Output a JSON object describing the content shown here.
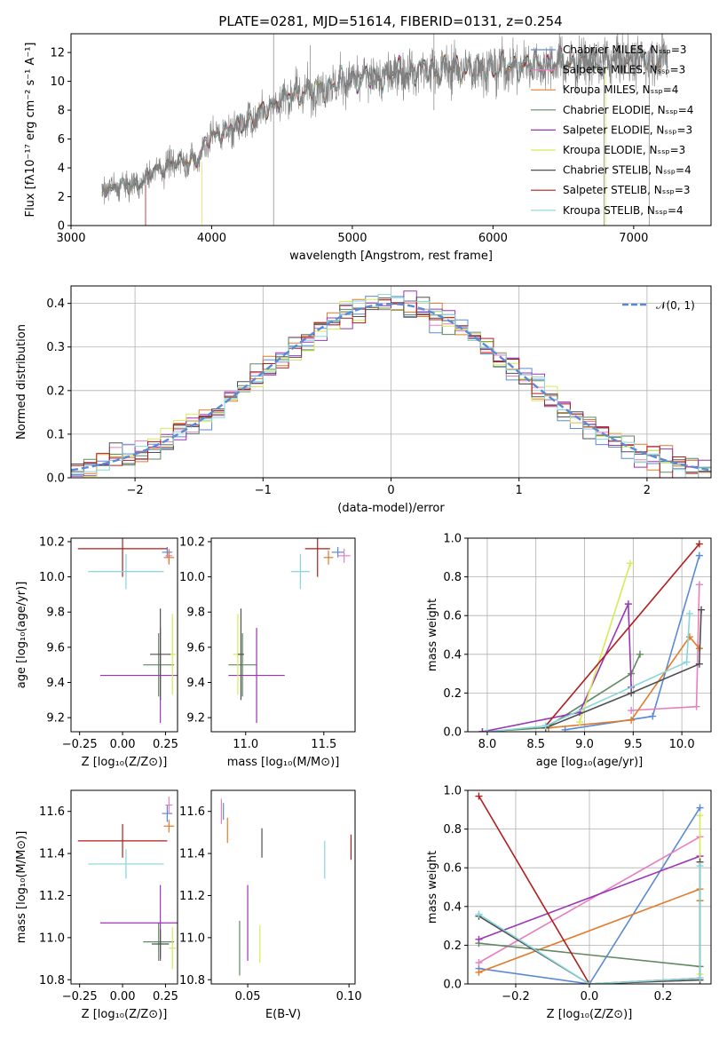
{
  "figure": {
    "title": "PLATE=0281, MJD=51614, FIBERID=0131, z=0.254"
  },
  "colors": {
    "Chabrier MILES": "#5a8ad6",
    "Salpeter MILES": "#e67fc0",
    "Kroupa MILES": "#e07b2a",
    "Chabrier ELODIE": "#5f8a62",
    "Salpeter ELODIE": "#9b35b6",
    "Kroupa ELODIE": "#d7ea57",
    "Chabrier STELIB": "#505050",
    "Salpeter STELIB": "#b01d1d",
    "Kroupa STELIB": "#86d6dc",
    "data": "#808080",
    "normal": "#5a8ad6",
    "grid": "#b0b0b0"
  },
  "chart_data": [
    {
      "id": "spectrum",
      "type": "line",
      "title": "PLATE=0281, MJD=51614, FIBERID=0131, z=0.254",
      "xlabel": "wavelength [Angstrom, rest frame]",
      "ylabel": "Flux [fλ10⁻¹⁷ erg cm⁻² s⁻¹ A⁻¹]",
      "xlim": [
        3000,
        7550
      ],
      "ylim": [
        0,
        13.3
      ],
      "xticks": [
        3000,
        4000,
        5000,
        6000,
        7000
      ],
      "yticks": [
        0,
        2,
        4,
        6,
        8,
        10,
        12
      ],
      "grid": false,
      "legend_position": "right",
      "continuum_points": [
        [
          3220,
          2.5
        ],
        [
          3400,
          2.8
        ],
        [
          3500,
          2.9
        ],
        [
          3600,
          3.9
        ],
        [
          3700,
          4.2
        ],
        [
          3800,
          4.5
        ],
        [
          3900,
          4.6
        ],
        [
          4000,
          6.3
        ],
        [
          4100,
          6.5
        ],
        [
          4200,
          7.0
        ],
        [
          4300,
          7.4
        ],
        [
          4400,
          8.3
        ],
        [
          4500,
          8.7
        ],
        [
          4600,
          9.2
        ],
        [
          4700,
          9.3
        ],
        [
          4800,
          9.6
        ],
        [
          4900,
          9.9
        ],
        [
          5000,
          10.1
        ],
        [
          5200,
          10.3
        ],
        [
          5400,
          10.7
        ],
        [
          5600,
          10.8
        ],
        [
          5800,
          10.9
        ],
        [
          6000,
          10.9
        ],
        [
          6200,
          11.1
        ],
        [
          6400,
          11.2
        ],
        [
          6600,
          11.3
        ],
        [
          6800,
          11.4
        ],
        [
          7000,
          11.5
        ],
        [
          7240,
          11.5
        ]
      ],
      "series": [
        {
          "name": "Chabrier MILES, Nₛₛₚ=3"
        },
        {
          "name": "Salpeter MILES, Nₛₛₚ=3"
        },
        {
          "name": "Kroupa MILES, Nₛₛₚ=4"
        },
        {
          "name": "Chabrier ELODIE, Nₛₛₚ=4"
        },
        {
          "name": "Salpeter ELODIE, Nₛₛₚ=3"
        },
        {
          "name": "Kroupa ELODIE, Nₛₛₚ=3"
        },
        {
          "name": "Chabrier STELIB, Nₛₛₚ=4"
        },
        {
          "name": "Salpeter STELIB, Nₛₛₚ=3"
        },
        {
          "name": "Kroupa STELIB, Nₛₛₚ=4"
        }
      ]
    },
    {
      "id": "residuals",
      "type": "line",
      "xlabel": "(data-model)/error",
      "ylabel": "Normed distribution",
      "xlim": [
        -2.5,
        2.5
      ],
      "ylim": [
        0,
        0.44
      ],
      "xticks": [
        -2,
        -1,
        0,
        1,
        2
      ],
      "yticks": [
        0.0,
        0.1,
        0.2,
        0.3,
        0.4
      ],
      "grid": true,
      "legend_position": "top-right",
      "legend": "𝒩(0, 1)",
      "note": "step histograms, one per model, following a unit normal"
    },
    {
      "id": "age_vs_Z",
      "type": "scatter",
      "xlabel": "Z [log₁₀(Z/Z⊙)]",
      "ylabel": "age  [log₁₀(age/yr)]",
      "xlim": [
        -0.3,
        0.32
      ],
      "ylim": [
        9.12,
        10.22
      ],
      "xticks": [
        -0.25,
        0.0,
        0.25
      ],
      "yticks": [
        9.2,
        9.4,
        9.6,
        9.8,
        10.0,
        10.2
      ],
      "grid": false,
      "points": [
        {
          "model": "Chabrier MILES",
          "x": 0.26,
          "y": 10.14,
          "xerr": 0.03,
          "yerr": 0.03
        },
        {
          "model": "Salpeter MILES",
          "x": 0.27,
          "y": 10.12,
          "xerr": 0.02,
          "yerr": 0.04
        },
        {
          "model": "Kroupa MILES",
          "x": 0.27,
          "y": 10.11,
          "xerr": 0.03,
          "yerr": 0.04
        },
        {
          "model": "Chabrier ELODIE",
          "x": 0.21,
          "y": 9.5,
          "xerr": 0.09,
          "yerr": 0.18
        },
        {
          "model": "Salpeter ELODIE",
          "x": 0.22,
          "y": 9.44,
          "xerr": 0.35,
          "yerr": 0.27
        },
        {
          "model": "Kroupa ELODIE",
          "x": 0.29,
          "y": 9.56,
          "xerr": 0.02,
          "yerr": 0.23
        },
        {
          "model": "Chabrier STELIB",
          "x": 0.22,
          "y": 9.56,
          "xerr": 0.06,
          "yerr": 0.26
        },
        {
          "model": "Salpeter STELIB",
          "x": 0.0,
          "y": 10.16,
          "xerr": 0.26,
          "yerr": 0.16
        },
        {
          "model": "Kroupa STELIB",
          "x": 0.02,
          "y": 10.03,
          "xerr": 0.22,
          "yerr": 0.1
        }
      ]
    },
    {
      "id": "age_vs_mass",
      "type": "scatter",
      "xlabel": "mass [log₁₀(M/M⊙)]",
      "ylabel": "",
      "xlim": [
        10.78,
        11.7
      ],
      "ylim": [
        9.12,
        10.22
      ],
      "xticks": [
        11.0,
        11.5
      ],
      "yticks": [
        9.2,
        9.4,
        9.6,
        9.8,
        10.0,
        10.2
      ],
      "grid": false,
      "points": [
        {
          "model": "Chabrier MILES",
          "x": 11.59,
          "y": 10.14,
          "xerr": 0.04,
          "yerr": 0.03
        },
        {
          "model": "Salpeter MILES",
          "x": 11.63,
          "y": 10.12,
          "xerr": 0.04,
          "yerr": 0.04
        },
        {
          "model": "Kroupa MILES",
          "x": 11.53,
          "y": 10.11,
          "xerr": 0.03,
          "yerr": 0.04
        },
        {
          "model": "Chabrier ELODIE",
          "x": 10.98,
          "y": 9.5,
          "xerr": 0.09,
          "yerr": 0.18
        },
        {
          "model": "Salpeter ELODIE",
          "x": 11.07,
          "y": 9.44,
          "xerr": 0.18,
          "yerr": 0.27
        },
        {
          "model": "Kroupa ELODIE",
          "x": 10.95,
          "y": 9.56,
          "xerr": 0.03,
          "yerr": 0.23
        },
        {
          "model": "Chabrier STELIB",
          "x": 10.97,
          "y": 9.56,
          "xerr": 0.02,
          "yerr": 0.26
        },
        {
          "model": "Salpeter STELIB",
          "x": 11.46,
          "y": 10.16,
          "xerr": 0.08,
          "yerr": 0.16
        },
        {
          "model": "Kroupa STELIB",
          "x": 11.35,
          "y": 10.03,
          "xerr": 0.06,
          "yerr": 0.1
        }
      ]
    },
    {
      "id": "weight_vs_age",
      "type": "line",
      "xlabel": "age  [log₁₀(age/yr)]",
      "ylabel": "mass weight",
      "xlim": [
        7.8,
        10.3
      ],
      "ylim": [
        0,
        1.0
      ],
      "xticks": [
        8.0,
        8.5,
        9.0,
        9.5,
        10.0
      ],
      "yticks": [
        0.0,
        0.2,
        0.4,
        0.6,
        0.8,
        1.0
      ],
      "grid": true,
      "series": [
        {
          "model": "Chabrier MILES",
          "x": [
            8.8,
            9.7,
            10.18
          ],
          "y": [
            0.01,
            0.08,
            0.91
          ]
        },
        {
          "model": "Salpeter MILES",
          "x": [
            9.48,
            10.15,
            10.18
          ],
          "y": [
            0.11,
            0.13,
            0.76
          ]
        },
        {
          "model": "Kroupa MILES",
          "x": [
            8.63,
            9.48,
            10.08,
            10.18
          ],
          "y": [
            0.02,
            0.06,
            0.49,
            0.43
          ]
        },
        {
          "model": "Chabrier ELODIE",
          "x": [
            7.95,
            8.6,
            9.48,
            9.57
          ],
          "y": [
            0.0,
            0.02,
            0.3,
            0.4
          ]
        },
        {
          "model": "Salpeter ELODIE",
          "x": [
            7.95,
            8.95,
            9.45,
            9.48
          ],
          "y": [
            0.0,
            0.1,
            0.66,
            0.23
          ]
        },
        {
          "model": "Kroupa ELODIE",
          "x": [
            8.95,
            9.47
          ],
          "y": [
            0.05,
            0.87
          ]
        },
        {
          "model": "Chabrier STELIB",
          "x": [
            8.6,
            9.48,
            10.18,
            10.2
          ],
          "y": [
            0.02,
            0.2,
            0.35,
            0.63
          ]
        },
        {
          "model": "Salpeter STELIB",
          "x": [
            8.6,
            10.18
          ],
          "y": [
            0.03,
            0.97
          ]
        },
        {
          "model": "Kroupa STELIB",
          "x": [
            8.0,
            8.6,
            10.05,
            10.08
          ],
          "y": [
            0.0,
            0.03,
            0.36,
            0.61
          ]
        }
      ]
    },
    {
      "id": "mass_vs_Z",
      "type": "scatter",
      "xlabel": "Z [log₁₀(Z/Z⊙)]",
      "ylabel": "mass [log₁₀(M/M⊙)]",
      "xlim": [
        -0.3,
        0.32
      ],
      "ylim": [
        10.78,
        11.7
      ],
      "xticks": [
        -0.25,
        0.0,
        0.25
      ],
      "yticks": [
        10.8,
        11.0,
        11.2,
        11.4,
        11.6
      ],
      "grid": false,
      "points": [
        {
          "model": "Chabrier MILES",
          "x": 0.26,
          "y": 11.59,
          "xerr": 0.03,
          "yerr": 0.04
        },
        {
          "model": "Salpeter MILES",
          "x": 0.27,
          "y": 11.63,
          "xerr": 0.02,
          "yerr": 0.04
        },
        {
          "model": "Kroupa MILES",
          "x": 0.27,
          "y": 11.53,
          "xerr": 0.03,
          "yerr": 0.03
        },
        {
          "model": "Chabrier ELODIE",
          "x": 0.21,
          "y": 10.98,
          "xerr": 0.09,
          "yerr": 0.09
        },
        {
          "model": "Salpeter ELODIE",
          "x": 0.22,
          "y": 11.07,
          "xerr": 0.35,
          "yerr": 0.18
        },
        {
          "model": "Kroupa ELODIE",
          "x": 0.29,
          "y": 10.95,
          "xerr": 0.02,
          "yerr": 0.1
        },
        {
          "model": "Chabrier STELIB",
          "x": 0.22,
          "y": 10.97,
          "xerr": 0.05,
          "yerr": 0.07
        },
        {
          "model": "Salpeter STELIB",
          "x": 0.0,
          "y": 11.46,
          "xerr": 0.26,
          "yerr": 0.08
        },
        {
          "model": "Kroupa STELIB",
          "x": 0.02,
          "y": 11.35,
          "xerr": 0.22,
          "yerr": 0.07
        }
      ]
    },
    {
      "id": "mass_vs_ebv",
      "type": "scatter",
      "xlabel": "E(B-V)",
      "ylabel": "",
      "xlim": [
        0.032,
        0.103
      ],
      "ylim": [
        10.78,
        11.7
      ],
      "xticks": [
        0.05,
        0.1
      ],
      "yticks": [
        10.8,
        11.0,
        11.2,
        11.4,
        11.6
      ],
      "grid": false,
      "points": [
        {
          "model": "Chabrier MILES",
          "x": 0.038,
          "y": 11.6,
          "yerr": 0.04
        },
        {
          "model": "Salpeter MILES",
          "x": 0.037,
          "y": 11.6,
          "yerr": 0.06
        },
        {
          "model": "Kroupa MILES",
          "x": 0.04,
          "y": 11.51,
          "yerr": 0.06
        },
        {
          "model": "Chabrier ELODIE",
          "x": 0.046,
          "y": 10.95,
          "yerr": 0.13
        },
        {
          "model": "Salpeter ELODIE",
          "x": 0.05,
          "y": 11.07,
          "yerr": 0.18
        },
        {
          "model": "Kroupa ELODIE",
          "x": 0.056,
          "y": 10.97,
          "yerr": 0.09
        },
        {
          "model": "Chabrier STELIB",
          "x": 0.057,
          "y": 11.45,
          "yerr": 0.07
        },
        {
          "model": "Salpeter STELIB",
          "x": 0.101,
          "y": 11.43,
          "yerr": 0.06
        },
        {
          "model": "Kroupa STELIB",
          "x": 0.088,
          "y": 11.37,
          "yerr": 0.09
        }
      ]
    },
    {
      "id": "weight_vs_Z",
      "type": "line",
      "xlabel": "Z [log₁₀(Z/Z⊙)]",
      "ylabel": "mass weight",
      "xlim": [
        -0.33,
        0.33
      ],
      "ylim": [
        0,
        1.0
      ],
      "xticks": [
        -0.2,
        0.0,
        0.2
      ],
      "yticks": [
        0.0,
        0.2,
        0.4,
        0.6,
        0.8,
        1.0
      ],
      "grid": true,
      "series": [
        {
          "model": "Chabrier MILES",
          "x": [
            -0.3,
            0.0,
            0.3
          ],
          "y": [
            0.08,
            0.0,
            0.91
          ]
        },
        {
          "model": "Salpeter MILES",
          "x": [
            -0.3,
            0.3
          ],
          "y": [
            0.11,
            0.76
          ]
        },
        {
          "model": "Kroupa MILES",
          "x": [
            -0.3,
            0.3,
            0.3
          ],
          "y": [
            0.06,
            0.49,
            0.43
          ]
        },
        {
          "model": "Chabrier ELODIE",
          "x": [
            -0.3,
            0.3
          ],
          "y": [
            0.21,
            0.09
          ]
        },
        {
          "model": "Salpeter ELODIE",
          "x": [
            -0.3,
            0.3
          ],
          "y": [
            0.23,
            0.66
          ]
        },
        {
          "model": "Kroupa ELODIE",
          "x": [
            0.3,
            0.3
          ],
          "y": [
            0.05,
            0.87
          ]
        },
        {
          "model": "Chabrier STELIB",
          "x": [
            -0.3,
            0.0,
            0.3,
            0.3
          ],
          "y": [
            0.35,
            0.0,
            0.02,
            0.63
          ]
        },
        {
          "model": "Salpeter STELIB",
          "x": [
            -0.3,
            0.0,
            0.3
          ],
          "y": [
            0.97,
            0.0,
            0.03
          ]
        },
        {
          "model": "Kroupa STELIB",
          "x": [
            -0.3,
            0.0,
            0.3,
            0.3
          ],
          "y": [
            0.36,
            0.0,
            0.03,
            0.61
          ]
        }
      ]
    }
  ]
}
